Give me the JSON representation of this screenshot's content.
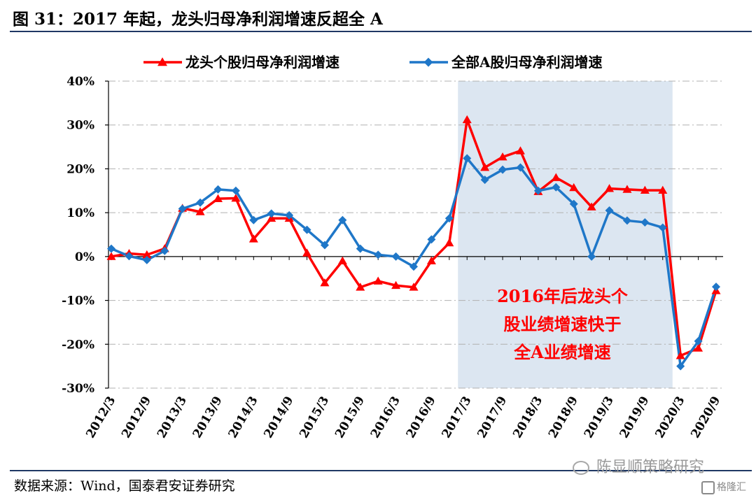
{
  "figure": {
    "title": "图 31：2017 年起，龙头归母净利润增速反超全 A",
    "source": "数据来源：Wind，国泰君安证券研究",
    "watermark": "陈显顺策略研究",
    "watermark_icon": "wechat-icon",
    "logo_text": "格隆汇",
    "logo_icon": "gelonghui-logo-icon"
  },
  "chart_data": {
    "type": "line",
    "title": "",
    "xlabel": "",
    "ylabel": "",
    "ylim": [
      -30,
      40
    ],
    "ytick_values": [
      -30,
      -20,
      -10,
      0,
      10,
      20,
      30,
      40
    ],
    "ytick_labels": [
      "-30%",
      "-20%",
      "-10%",
      "0%",
      "10%",
      "20%",
      "30%",
      "40%"
    ],
    "x": [
      "2012/3",
      "2012/6",
      "2012/9",
      "2012/12",
      "2013/3",
      "2013/6",
      "2013/9",
      "2013/12",
      "2014/3",
      "2014/6",
      "2014/9",
      "2014/12",
      "2015/3",
      "2015/6",
      "2015/9",
      "2015/12",
      "2016/3",
      "2016/6",
      "2016/9",
      "2016/12",
      "2017/3",
      "2017/6",
      "2017/9",
      "2017/12",
      "2018/3",
      "2018/6",
      "2018/9",
      "2018/12",
      "2019/3",
      "2019/6",
      "2019/9",
      "2019/12",
      "2020/3",
      "2020/6",
      "2020/9"
    ],
    "xtick_labels": [
      "2012/3",
      "2012/9",
      "2013/3",
      "2013/9",
      "2014/3",
      "2014/9",
      "2015/3",
      "2015/9",
      "2016/3",
      "2016/9",
      "2017/3",
      "2017/9",
      "2018/3",
      "2018/9",
      "2019/3",
      "2019/9",
      "2020/3",
      "2020/9"
    ],
    "grid": true,
    "legend_position": "top",
    "series": [
      {
        "name": "龙头个股归母净利润增速",
        "color": "#ff0000",
        "marker": "triangle",
        "values": [
          0,
          0.7,
          0.4,
          1.8,
          11.0,
          10.2,
          13.2,
          13.3,
          4.0,
          8.7,
          8.7,
          0.8,
          -6.0,
          -1.0,
          -7.0,
          -5.6,
          -6.6,
          -7.0,
          -1.0,
          3.1,
          31.2,
          20.3,
          22.7,
          24.1,
          14.8,
          18.0,
          15.7,
          11.3,
          15.5,
          15.3,
          15.1,
          15.1,
          -22.6,
          -20.9,
          -7.8
        ]
      },
      {
        "name": "全部A股归母净利润增速",
        "color": "#1f77c8",
        "marker": "diamond",
        "values": [
          1.8,
          0.1,
          -0.8,
          1.3,
          10.9,
          12.3,
          15.3,
          15.0,
          8.3,
          9.8,
          9.4,
          6.1,
          2.6,
          8.3,
          1.8,
          0.4,
          0.0,
          -2.3,
          3.9,
          8.7,
          22.4,
          17.5,
          19.8,
          20.3,
          15.0,
          15.8,
          12.0,
          0.0,
          10.5,
          8.2,
          7.8,
          6.6,
          -25.0,
          -19.3,
          -6.9
        ]
      }
    ],
    "shaded_region": {
      "from": "2017/3",
      "to": "2019/12",
      "color": "#dce6f1",
      "annotation": [
        "2016年后龙头个",
        "股业绩增速快于",
        "全A业绩增速"
      ]
    }
  }
}
